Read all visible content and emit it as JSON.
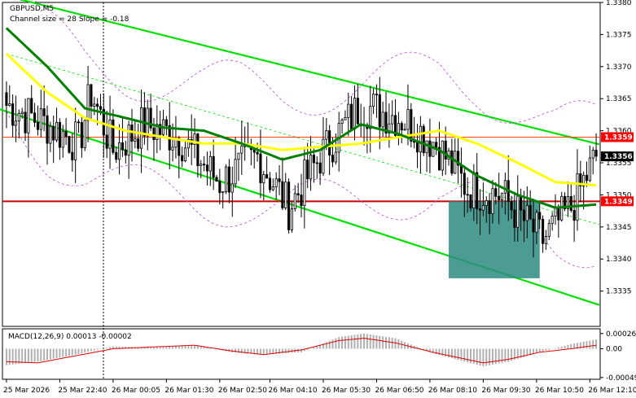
{
  "chart_data": {
    "type": "candlestick",
    "title": "GBPUSD,M5",
    "subtitle": "Channel size = 28 Slope = -0.18",
    "price_axis": {
      "ylim": [
        1.33295,
        1.338
      ],
      "ticks": [
        "1.3380",
        "1.3375",
        "1.3370",
        "1.3365",
        "1.3360",
        "1.3355",
        "1.3350",
        "1.3345",
        "1.3340",
        "1.3335"
      ],
      "tick_values": [
        1.338,
        1.3375,
        1.337,
        1.3365,
        1.336,
        1.3355,
        1.335,
        1.3345,
        1.334,
        1.3335
      ]
    },
    "price_markers": [
      {
        "label": "1.3359",
        "value": 1.3359,
        "color": "#ff0000"
      },
      {
        "label": "1.3356",
        "value": 1.3356,
        "color": "#000000"
      },
      {
        "label": "1.3349",
        "value": 1.3349,
        "color": "#ff0000"
      }
    ],
    "horizontal_lines": [
      {
        "value": 1.3359,
        "color": "#ff4500",
        "style": "thin"
      },
      {
        "value": 1.3349,
        "color": "#cc0000",
        "style": "thick"
      }
    ],
    "time_axis": {
      "labels": [
        "25 Mar 2026",
        "25 Mar 22:40",
        "26 Mar 00:05",
        "26 Mar 01:30",
        "26 Mar 02:50",
        "26 Mar 04:10",
        "26 Mar 05:30",
        "26 Mar 06:50",
        "26 Mar 08:10",
        "26 Mar 09:30",
        "26 Mar 10:50",
        "26 Mar 12:10"
      ],
      "label_bars": [
        0,
        17,
        34,
        51,
        68,
        84,
        101,
        118,
        135,
        152,
        169,
        186
      ],
      "bar_count": 189
    },
    "ohlc_anchor_closes": [
      1.3364,
      1.3361,
      1.3358,
      1.3366,
      1.3357,
      1.3361,
      1.3359,
      1.3352,
      1.3356,
      1.3348,
      1.3356,
      1.3364,
      1.3362,
      1.3358,
      1.3351,
      1.335,
      1.3347,
      1.3343,
      1.3348,
      1.3356
    ],
    "anchor_bars": [
      0,
      13,
      23,
      27,
      34,
      44,
      55,
      68,
      80,
      90,
      100,
      113,
      126,
      137,
      147,
      158,
      163,
      171,
      180,
      188
    ],
    "moving_averages": [
      {
        "color": "#ffff00",
        "closes": [
          1.3372,
          1.3366,
          1.3362,
          1.336,
          1.3359,
          1.3358,
          1.3358,
          1.3357,
          1.33575,
          1.3358,
          1.3359,
          1.336,
          1.3358,
          1.3355,
          1.3352,
          1.33515
        ]
      },
      {
        "color": "#008000",
        "closes": [
          1.3376,
          1.337,
          1.33635,
          1.3362,
          1.33605,
          1.336,
          1.3358,
          1.33555,
          1.3357,
          1.3361,
          1.33595,
          1.3357,
          1.3353,
          1.335,
          1.3348,
          1.33485
        ]
      }
    ],
    "channel": {
      "color": "#00e000",
      "upper": {
        "from": [
          0,
          1.3381
        ],
        "to": [
          188,
          1.3358
        ]
      },
      "lower": {
        "from": [
          0,
          1.3363
        ],
        "to": [
          188,
          1.3333
        ]
      }
    },
    "highlight_box": {
      "x_from": 141,
      "x_to": 170,
      "y_from": 1.3349,
      "y_to": 1.3337,
      "color": "#2e8b80"
    },
    "macd": {
      "label": "MACD(12,26,9) 0.00013 -0.00002",
      "ticks": [
        "0.00026",
        "0.00",
        "-0.00049"
      ],
      "tick_values": [
        0.00026,
        0.0,
        -0.00049
      ],
      "ylim": [
        -0.00052,
        0.00034
      ],
      "histogram_anchor": [
        -0.00028,
        -0.00022,
        -0.0001,
        4e-05,
        2e-05,
        6e-05,
        -6e-05,
        -0.0001,
        -6e-05,
        0.0002,
        0.00026,
        0.00018,
        -8e-05,
        -0.0003,
        -0.00022,
        -6e-05,
        8e-05,
        0.00016
      ],
      "histogram_bars": [
        0,
        10,
        22,
        34,
        46,
        60,
        72,
        82,
        94,
        106,
        114,
        124,
        136,
        152,
        160,
        170,
        180,
        188
      ],
      "signal_anchor": [
        -0.00022,
        -0.00024,
        -0.00012,
        0.0,
        3e-05,
        6e-05,
        -4e-05,
        -0.0001,
        -2e-05,
        0.00014,
        0.00018,
        0.0001,
        -6e-05,
        -0.00024,
        -0.00018,
        -6e-05,
        0.0,
        6e-05
      ]
    }
  }
}
